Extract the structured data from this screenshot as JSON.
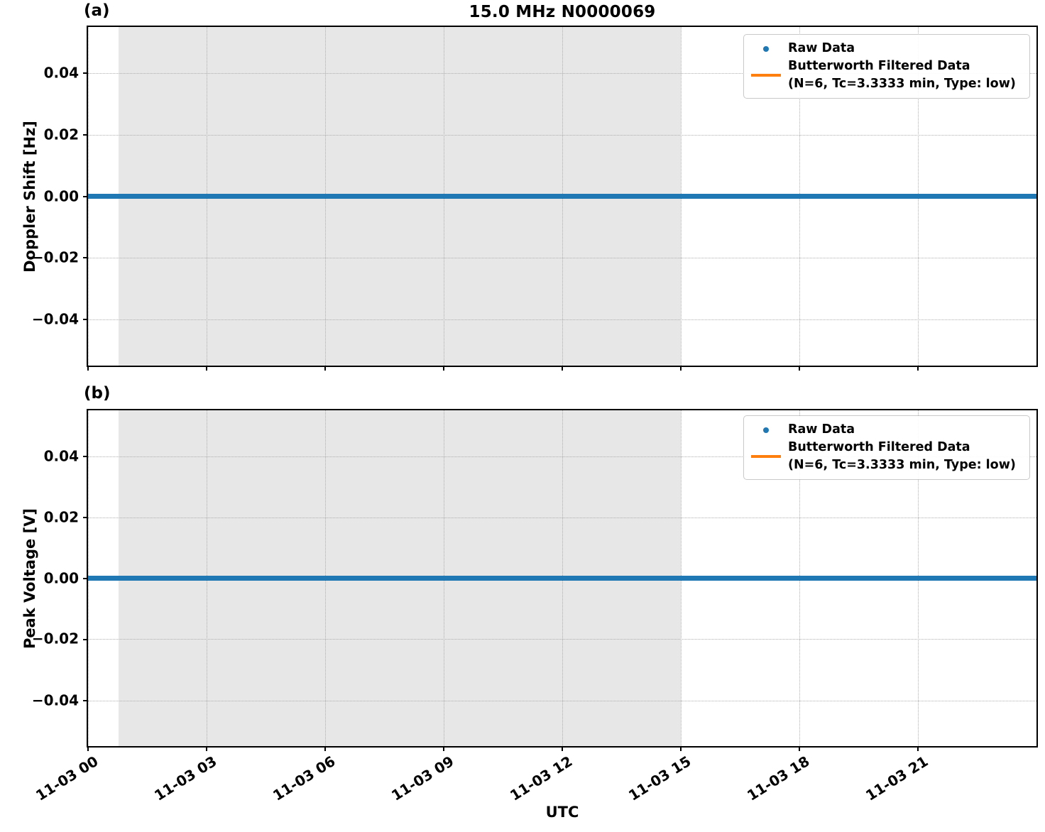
{
  "figure": {
    "title": "15.0 MHz N0000069",
    "panel_a_tag": "(a)",
    "panel_b_tag": "(b)",
    "xlabel": "UTC",
    "colors": {
      "raw": "#1f77b4",
      "filtered": "#ff7f0e",
      "shade": "#e7e7e7",
      "grid": "#aeaeae"
    }
  },
  "legend": {
    "raw_label": "Raw Data",
    "filtered_label": "Butterworth Filtered Data",
    "filtered_sublabel": "(N=6, Tc=3.3333 min, Type: low)"
  },
  "chart_data": [
    {
      "type": "scatter",
      "title": "15.0 MHz N0000069",
      "panel_tag": "(a)",
      "xlabel": "UTC",
      "ylabel": "Doppler Shift [Hz]",
      "x_range_hours": [
        0,
        24
      ],
      "x_tick_hours": [
        0,
        3,
        6,
        9,
        12,
        15,
        18,
        21
      ],
      "x_tick_labels": [
        "11-03 00",
        "11-03 03",
        "11-03 06",
        "11-03 09",
        "11-03 12",
        "11-03 15",
        "11-03 18",
        "11-03 21"
      ],
      "show_x_tick_labels": false,
      "ylim": [
        -0.055,
        0.055
      ],
      "y_ticks": [
        0.04,
        0.02,
        0.0,
        -0.02,
        -0.04
      ],
      "y_tick_labels": [
        "0.04",
        "0.02",
        "0.00",
        "−0.02",
        "−0.04"
      ],
      "grid": true,
      "legend_position": "upper right",
      "shaded_region_hours": [
        0.78,
        15.0
      ],
      "series": [
        {
          "name": "Raw Data",
          "style": "scatter",
          "color": "#1f77b4",
          "value_constant": 0.0
        },
        {
          "name": "Butterworth Filtered Data (N=6, Tc=3.3333 min, Type: low)",
          "style": "line",
          "color": "#ff7f0e",
          "value_constant": 0.0
        }
      ]
    },
    {
      "type": "scatter",
      "title": "",
      "panel_tag": "(b)",
      "xlabel": "UTC",
      "ylabel": "Peak Voltage [V]",
      "x_range_hours": [
        0,
        24
      ],
      "x_tick_hours": [
        0,
        3,
        6,
        9,
        12,
        15,
        18,
        21
      ],
      "x_tick_labels": [
        "11-03 00",
        "11-03 03",
        "11-03 06",
        "11-03 09",
        "11-03 12",
        "11-03 15",
        "11-03 18",
        "11-03 21"
      ],
      "show_x_tick_labels": true,
      "ylim": [
        -0.055,
        0.055
      ],
      "y_ticks": [
        0.04,
        0.02,
        0.0,
        -0.02,
        -0.04
      ],
      "y_tick_labels": [
        "0.04",
        "0.02",
        "0.00",
        "−0.02",
        "−0.04"
      ],
      "grid": true,
      "legend_position": "upper right",
      "shaded_region_hours": [
        0.78,
        15.0
      ],
      "series": [
        {
          "name": "Raw Data",
          "style": "scatter",
          "color": "#1f77b4",
          "value_constant": 0.0
        },
        {
          "name": "Butterworth Filtered Data (N=6, Tc=3.3333 min, Type: low)",
          "style": "line",
          "color": "#ff7f0e",
          "value_constant": 0.0
        }
      ]
    }
  ]
}
